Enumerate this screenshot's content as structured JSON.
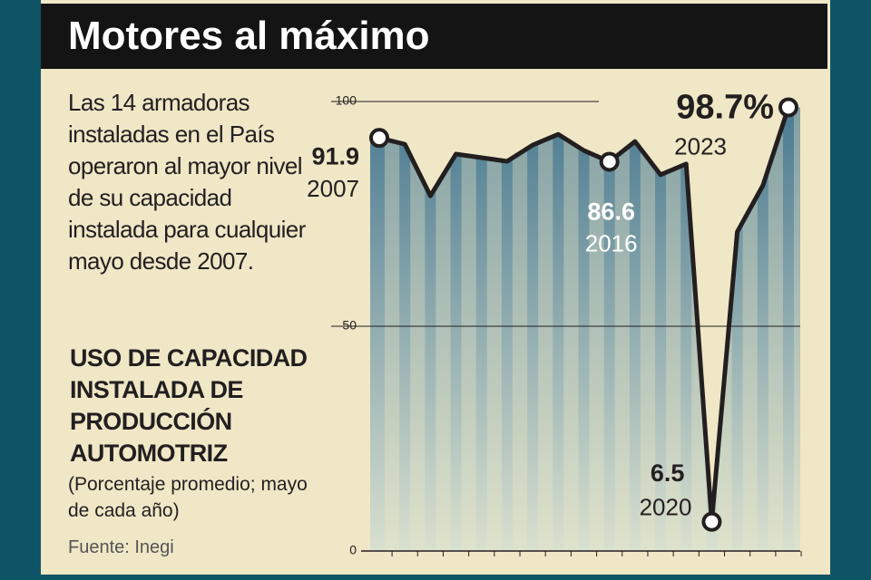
{
  "header": {
    "title": "Motores al máximo"
  },
  "description": "Las 14 armadoras instaladas en el País operaron al mayor nivel de su capacidad instalada para cualquier mayo desde 2007.",
  "chart_data": {
    "type": "line",
    "title": "USO DE CAPACIDAD INSTALADA DE PRODUCCIÓN AUTOMOTRIZ",
    "subtitle": "(Porcentaje promedio; mayo de cada año)",
    "source": "Fuente: Inegi",
    "categories": [
      "2007",
      null,
      null,
      null,
      null,
      null,
      null,
      null,
      null,
      "2016",
      null,
      null,
      null,
      "2020",
      null,
      null,
      "2023"
    ],
    "values": [
      91.9,
      90.5,
      79,
      88.3,
      87.5,
      86.7,
      90.3,
      92.7,
      89.1,
      86.6,
      91.1,
      83.7,
      86.1,
      6.5,
      71,
      81.3,
      98.7
    ],
    "value_labels": [
      "91.9",
      null,
      null,
      null,
      null,
      null,
      null,
      null,
      null,
      "86.6",
      null,
      null,
      null,
      "6.5",
      null,
      null,
      "98.7%"
    ],
    "color": "#231f20",
    "ylim": [
      0,
      100
    ],
    "yticks": [
      0,
      50,
      100
    ],
    "grid": true
  }
}
